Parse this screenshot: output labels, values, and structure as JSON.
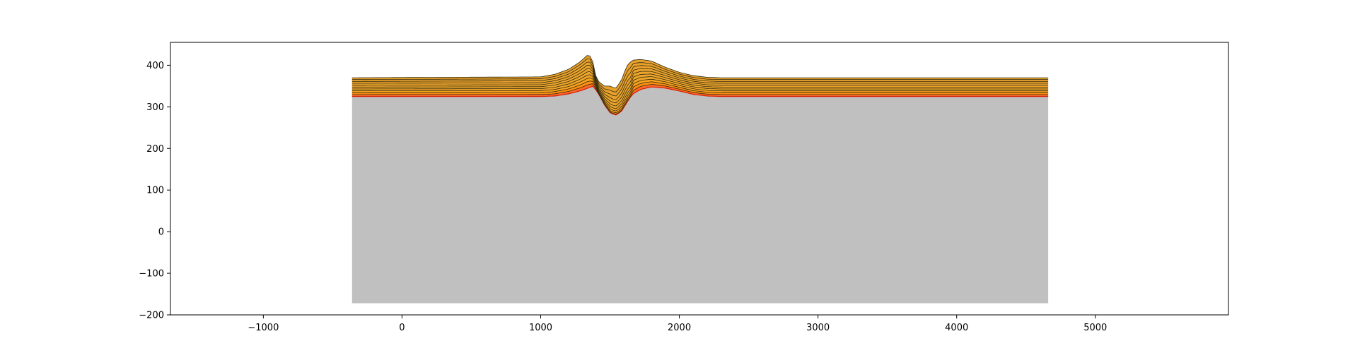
{
  "chart_data": {
    "type": "area",
    "title": "",
    "xlabel": "",
    "ylabel": "",
    "xlim": [
      -1670,
      5960
    ],
    "ylim": [
      -200,
      455
    ],
    "xticks": [
      -1000,
      0,
      1000,
      2000,
      3000,
      4000,
      5000
    ],
    "xtick_labels": [
      "−1000",
      "0",
      "1000",
      "2000",
      "3000",
      "4000",
      "5000"
    ],
    "yticks": [
      -200,
      -100,
      0,
      100,
      200,
      300,
      400
    ],
    "ytick_labels": [
      "−200",
      "−100",
      "0",
      "100",
      "200",
      "300",
      "400"
    ],
    "grid": false,
    "basement": {
      "x_range": [
        -360,
        4660
      ],
      "bottom": -172,
      "top_profile": [
        [
          -360,
          325
        ],
        [
          1000,
          325
        ],
        [
          1100,
          326
        ],
        [
          1200,
          331
        ],
        [
          1300,
          340
        ],
        [
          1380,
          350
        ],
        [
          1420,
          330
        ],
        [
          1460,
          305
        ],
        [
          1500,
          286
        ],
        [
          1540,
          280
        ],
        [
          1580,
          288
        ],
        [
          1620,
          310
        ],
        [
          1660,
          330
        ],
        [
          1720,
          342
        ],
        [
          1800,
          348
        ],
        [
          1900,
          345
        ],
        [
          2000,
          338
        ],
        [
          2100,
          330
        ],
        [
          2200,
          326
        ],
        [
          2300,
          325
        ],
        [
          4660,
          325
        ]
      ],
      "color": "#c0c0c0"
    },
    "layers": {
      "count": 10,
      "initial_top": 370,
      "initial_bottom": 325,
      "top_profile": [
        [
          -360,
          370
        ],
        [
          1000,
          372
        ],
        [
          1100,
          378
        ],
        [
          1200,
          390
        ],
        [
          1280,
          407
        ],
        [
          1340,
          425
        ],
        [
          1370,
          420
        ],
        [
          1390,
          380
        ],
        [
          1420,
          360
        ],
        [
          1460,
          350
        ],
        [
          1500,
          350
        ],
        [
          1540,
          344
        ],
        [
          1580,
          362
        ],
        [
          1620,
          398
        ],
        [
          1660,
          412
        ],
        [
          1720,
          414
        ],
        [
          1800,
          410
        ],
        [
          1900,
          395
        ],
        [
          2000,
          383
        ],
        [
          2100,
          375
        ],
        [
          2200,
          371
        ],
        [
          2300,
          370
        ],
        [
          4660,
          370
        ]
      ],
      "colors": [
        "#ff6a28",
        "#fe8f10",
        "#f7a21f",
        "#f0a528",
        "#eda52c",
        "#eca42c",
        "#eba32c",
        "#eaa22c",
        "#e9a12c",
        "#e8a02c"
      ],
      "basin_fill_colors": [
        "#ff5a28",
        "#ff7a1a",
        "#ff9a10",
        "#ffb400",
        "#ffcc00",
        "#ffe000"
      ],
      "line_color": "#2e2a10"
    }
  }
}
